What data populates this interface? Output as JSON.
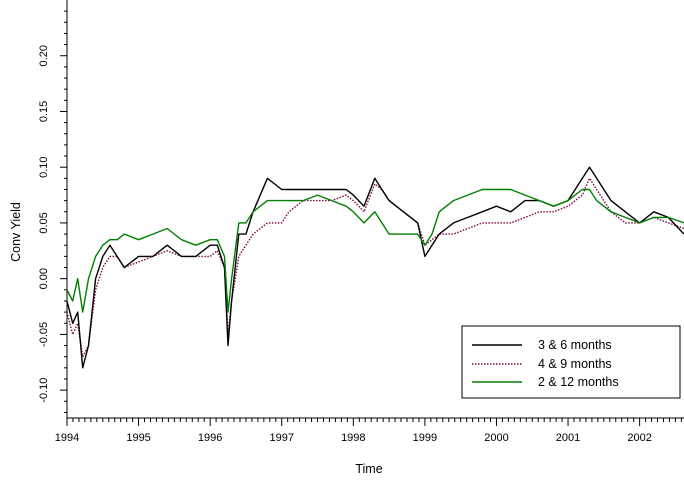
{
  "chart_data": {
    "type": "line",
    "title": "",
    "xlabel": "Time",
    "ylabel": "Conv Yield",
    "xlim": [
      1994.0,
      2002.62
    ],
    "ylim": [
      -0.125,
      0.25
    ],
    "x_ticks": [
      {
        "value": 1994,
        "label": "1994"
      },
      {
        "value": 1995,
        "label": "1995"
      },
      {
        "value": 1996,
        "label": "1996"
      },
      {
        "value": 1997,
        "label": "1997"
      },
      {
        "value": 1998,
        "label": "1998"
      },
      {
        "value": 1999,
        "label": "1999"
      },
      {
        "value": 2000,
        "label": "2000"
      },
      {
        "value": 2001,
        "label": "2001"
      },
      {
        "value": 2002,
        "label": "2002"
      }
    ],
    "y_ticks": [
      {
        "value": -0.1,
        "label": "-0.10"
      },
      {
        "value": -0.05,
        "label": "-0.05"
      },
      {
        "value": 0.0,
        "label": "0.00"
      },
      {
        "value": 0.05,
        "label": "0.05"
      },
      {
        "value": 0.1,
        "label": "0.10"
      },
      {
        "value": 0.15,
        "label": "0.15"
      },
      {
        "value": 0.2,
        "label": "0.20"
      }
    ],
    "grid": false,
    "legend_position": "bottom-right",
    "series": [
      {
        "name": "3 & 6 months",
        "color": "#000000",
        "style": "solid",
        "x": [
          1994.0,
          1994.08,
          1994.15,
          1994.22,
          1994.3,
          1994.4,
          1994.5,
          1994.6,
          1994.7,
          1994.8,
          1995.0,
          1995.2,
          1995.4,
          1995.6,
          1995.8,
          1996.0,
          1996.1,
          1996.2,
          1996.25,
          1996.3,
          1996.4,
          1996.5,
          1996.6,
          1996.8,
          1997.0,
          1997.1,
          1997.3,
          1997.5,
          1997.7,
          1997.9,
          1998.0,
          1998.15,
          1998.3,
          1998.4,
          1998.5,
          1998.7,
          1998.9,
          1999.0,
          1999.1,
          1999.2,
          1999.4,
          1999.6,
          1999.8,
          2000.0,
          2000.2,
          2000.4,
          2000.6,
          2000.8,
          2001.0,
          2001.2,
          2001.3,
          2001.4,
          2001.5,
          2001.6,
          2001.8,
          2002.0,
          2002.2,
          2002.4,
          2002.62
        ],
        "values": [
          -0.02,
          -0.04,
          -0.03,
          -0.08,
          -0.06,
          0.0,
          0.02,
          0.03,
          0.02,
          0.01,
          0.02,
          0.02,
          0.03,
          0.02,
          0.02,
          0.03,
          0.03,
          0.01,
          -0.06,
          -0.02,
          0.04,
          0.04,
          0.06,
          0.09,
          0.08,
          0.08,
          0.08,
          0.08,
          0.08,
          0.08,
          0.075,
          0.065,
          0.09,
          0.08,
          0.07,
          0.06,
          0.05,
          0.02,
          0.03,
          0.04,
          0.05,
          0.055,
          0.06,
          0.065,
          0.06,
          0.07,
          0.07,
          0.065,
          0.07,
          0.09,
          0.1,
          0.09,
          0.08,
          0.07,
          0.06,
          0.05,
          0.06,
          0.055,
          0.04
        ]
      },
      {
        "name": "4 & 9 months",
        "color": "#800040",
        "style": "dotted",
        "x": [
          1994.0,
          1994.08,
          1994.15,
          1994.22,
          1994.3,
          1994.4,
          1994.5,
          1994.6,
          1994.7,
          1994.8,
          1995.0,
          1995.2,
          1995.4,
          1995.6,
          1995.8,
          1996.0,
          1996.1,
          1996.2,
          1996.25,
          1996.3,
          1996.4,
          1996.5,
          1996.6,
          1996.8,
          1997.0,
          1997.1,
          1997.3,
          1997.5,
          1997.7,
          1997.9,
          1998.0,
          1998.15,
          1998.3,
          1998.4,
          1998.5,
          1998.7,
          1998.9,
          1999.0,
          1999.1,
          1999.2,
          1999.4,
          1999.6,
          1999.8,
          2000.0,
          2000.2,
          2000.4,
          2000.6,
          2000.8,
          2001.0,
          2001.2,
          2001.3,
          2001.4,
          2001.5,
          2001.6,
          2001.8,
          2002.0,
          2002.2,
          2002.4,
          2002.62
        ],
        "values": [
          -0.03,
          -0.05,
          -0.04,
          -0.07,
          -0.06,
          -0.01,
          0.01,
          0.02,
          0.02,
          0.01,
          0.015,
          0.02,
          0.025,
          0.02,
          0.02,
          0.02,
          0.025,
          0.01,
          -0.05,
          -0.02,
          0.02,
          0.03,
          0.04,
          0.05,
          0.05,
          0.06,
          0.07,
          0.07,
          0.07,
          0.075,
          0.07,
          0.06,
          0.085,
          0.08,
          0.07,
          0.06,
          0.05,
          0.03,
          0.035,
          0.04,
          0.04,
          0.045,
          0.05,
          0.05,
          0.05,
          0.055,
          0.06,
          0.06,
          0.065,
          0.075,
          0.09,
          0.08,
          0.07,
          0.06,
          0.05,
          0.05,
          0.055,
          0.05,
          0.045
        ]
      },
      {
        "name": "2 & 12 months",
        "color": "#008000",
        "style": "solid",
        "x": [
          1994.0,
          1994.08,
          1994.15,
          1994.22,
          1994.3,
          1994.4,
          1994.5,
          1994.6,
          1994.7,
          1994.8,
          1995.0,
          1995.2,
          1995.4,
          1995.6,
          1995.8,
          1996.0,
          1996.1,
          1996.2,
          1996.25,
          1996.3,
          1996.4,
          1996.5,
          1996.6,
          1996.8,
          1997.0,
          1997.1,
          1997.3,
          1997.5,
          1997.7,
          1997.9,
          1998.0,
          1998.15,
          1998.3,
          1998.4,
          1998.5,
          1998.7,
          1998.9,
          1999.0,
          1999.1,
          1999.2,
          1999.4,
          1999.6,
          1999.8,
          2000.0,
          2000.2,
          2000.4,
          2000.6,
          2000.8,
          2001.0,
          2001.2,
          2001.3,
          2001.4,
          2001.5,
          2001.6,
          2001.8,
          2002.0,
          2002.2,
          2002.4,
          2002.62
        ],
        "values": [
          -0.01,
          -0.02,
          0.0,
          -0.03,
          0.0,
          0.02,
          0.03,
          0.035,
          0.035,
          0.04,
          0.035,
          0.04,
          0.045,
          0.035,
          0.03,
          0.035,
          0.035,
          0.02,
          -0.03,
          0.0,
          0.05,
          0.05,
          0.06,
          0.07,
          0.07,
          0.07,
          0.07,
          0.075,
          0.07,
          0.065,
          0.06,
          0.05,
          0.06,
          0.05,
          0.04,
          0.04,
          0.04,
          0.03,
          0.04,
          0.06,
          0.07,
          0.075,
          0.08,
          0.08,
          0.08,
          0.075,
          0.07,
          0.065,
          0.07,
          0.08,
          0.08,
          0.07,
          0.065,
          0.06,
          0.055,
          0.05,
          0.055,
          0.055,
          0.05
        ]
      }
    ]
  }
}
